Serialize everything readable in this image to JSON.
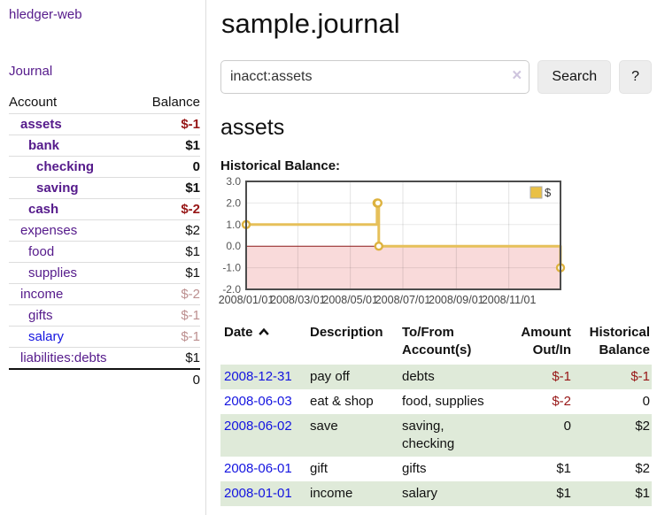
{
  "sidebar": {
    "brand": "hledger-web",
    "journal_link": "Journal",
    "accounts_table": {
      "col_account": "Account",
      "col_balance": "Balance",
      "rows": [
        {
          "name": "assets",
          "balance": "$-1",
          "level": 1,
          "bold": true,
          "balance_class": "neg",
          "name_class": "purple"
        },
        {
          "name": "bank",
          "balance": "$1",
          "level": 2,
          "bold": true,
          "balance_class": "pos",
          "name_class": "purple"
        },
        {
          "name": "checking",
          "balance": "0",
          "level": 3,
          "bold": true,
          "balance_class": "pos",
          "name_class": "purple"
        },
        {
          "name": "saving",
          "balance": "$1",
          "level": 3,
          "bold": true,
          "balance_class": "pos",
          "name_class": "purple"
        },
        {
          "name": "cash",
          "balance": "$-2",
          "level": 2,
          "bold": true,
          "balance_class": "neg",
          "name_class": "purple"
        },
        {
          "name": "expenses",
          "balance": "$2",
          "level": 1,
          "bold": false,
          "balance_class": "pos",
          "name_class": "purple"
        },
        {
          "name": "food",
          "balance": "$1",
          "level": 2,
          "bold": false,
          "balance_class": "pos",
          "name_class": "purple"
        },
        {
          "name": "supplies",
          "balance": "$1",
          "level": 2,
          "bold": false,
          "balance_class": "pos",
          "name_class": "purple"
        },
        {
          "name": "income",
          "balance": "$-2",
          "level": 1,
          "bold": false,
          "balance_class": "neg-faded",
          "name_class": "purple"
        },
        {
          "name": "gifts",
          "balance": "$-1",
          "level": 2,
          "bold": false,
          "balance_class": "neg-faded",
          "name_class": "purple"
        },
        {
          "name": "salary",
          "balance": "$-1",
          "level": 2,
          "bold": false,
          "balance_class": "neg-faded",
          "name_class": "blue"
        },
        {
          "name": "liabilities:debts",
          "balance": "$1",
          "level": 1,
          "bold": false,
          "balance_class": "pos",
          "name_class": "purple"
        }
      ],
      "total": "0"
    }
  },
  "main": {
    "title": "sample.journal",
    "search": {
      "value": "inacct:assets",
      "clear_icon": "×",
      "button_label": "Search",
      "help_label": "?"
    },
    "account_heading": "assets",
    "chart_heading": "Historical Balance:",
    "register_table": {
      "headers": {
        "date": "Date",
        "description": "Description",
        "accounts": "To/From Account(s)",
        "amount": "Amount Out/In",
        "balance": "Historical Balance"
      },
      "rows": [
        {
          "date": "2008-12-31",
          "description": "pay off",
          "accounts": "debts",
          "amount": "$-1",
          "balance": "$-1",
          "amount_class": "neg",
          "balance_class": "neg",
          "alt": true
        },
        {
          "date": "2008-06-03",
          "description": "eat & shop",
          "accounts": "food, supplies",
          "amount": "$-2",
          "balance": "0",
          "amount_class": "neg",
          "balance_class": "pos",
          "alt": false
        },
        {
          "date": "2008-06-02",
          "description": "save",
          "accounts": "saving, checking",
          "amount": "0",
          "balance": "$2",
          "amount_class": "pos",
          "balance_class": "pos",
          "alt": true
        },
        {
          "date": "2008-06-01",
          "description": "gift",
          "accounts": "gifts",
          "amount": "$1",
          "balance": "$2",
          "amount_class": "pos",
          "balance_class": "pos",
          "alt": false
        },
        {
          "date": "2008-01-01",
          "description": "income",
          "accounts": "salary",
          "amount": "$1",
          "balance": "$1",
          "amount_class": "pos",
          "balance_class": "pos",
          "alt": true
        }
      ]
    }
  },
  "chart_data": {
    "type": "line",
    "step": true,
    "title": "Historical Balance:",
    "legend": [
      "$"
    ],
    "legend_position": "top-right",
    "x": [
      "2008-01-01",
      "2008-06-01",
      "2008-06-02",
      "2008-06-03",
      "2008-12-31"
    ],
    "series": [
      {
        "name": "$",
        "values": [
          1,
          2,
          2,
          0,
          -1
        ]
      }
    ],
    "xrange": [
      "2008-01-01",
      "2008-12-31"
    ],
    "ylim": [
      -2,
      3
    ],
    "yticks": [
      3.0,
      2.0,
      1.0,
      0.0,
      -1.0,
      -2.0
    ],
    "xticks": [
      "2008-01-01",
      "2008-03-01",
      "2008-05-01",
      "2008-07-01",
      "2008-09-01",
      "2008-11-01"
    ],
    "grid": true,
    "colors": {
      "line": "#e6c05a",
      "marker_stroke": "#ddb23e",
      "marker_fill": "#fffdf5",
      "negative_region": "#f9dada",
      "zero_line": "#8c1a1a",
      "border": "#4c4c4c",
      "legend_fill": "#e9c045"
    }
  }
}
